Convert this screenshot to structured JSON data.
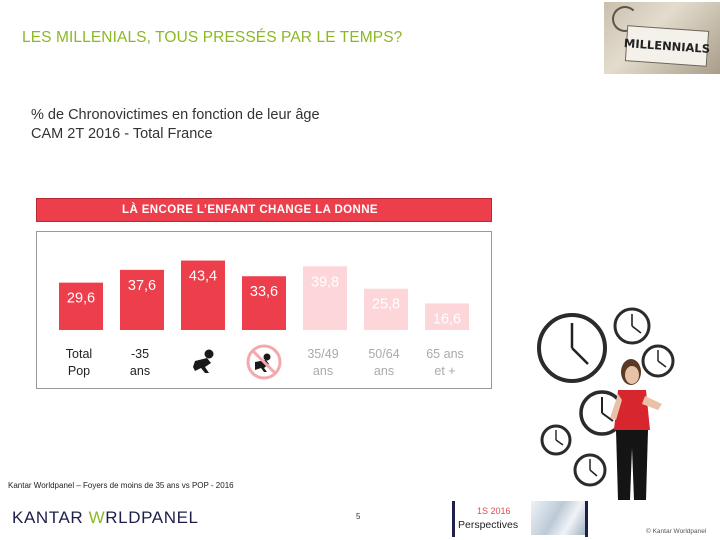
{
  "header": {
    "title": "LES MILLENIALS, TOUS PRESSÉS PAR LE TEMPS?",
    "photo_sign": "MILLENNIALS"
  },
  "subtitle": {
    "line1": "% de Chronovictimes en fonction de leur âge",
    "line2": "CAM 2T 2016 - Total France"
  },
  "banner": "LÀ ENCORE L’ENFANT CHANGE LA DONNE",
  "chart_data": {
    "type": "bar",
    "title": "",
    "categories": [
      [
        "Total",
        "Pop"
      ],
      [
        "-35",
        "ans"
      ],
      [
        "baby-icon"
      ],
      [
        "no-baby-icon"
      ],
      [
        "35/49",
        "ans"
      ],
      [
        "50/64",
        "ans"
      ],
      [
        "65 ans",
        "et +"
      ]
    ],
    "values": [
      29.6,
      37.6,
      43.4,
      33.6,
      39.8,
      25.8,
      16.6
    ],
    "value_labels": [
      "29,6",
      "37,6",
      "43,4",
      "33,6",
      "39,8",
      "25,8",
      "16,6"
    ],
    "bar_colors": [
      "#ec3e4b",
      "#ec3e4b",
      "#ec3e4b",
      "#ec3e4b",
      "#fcd6d9",
      "#fcd6d9",
      "#fcd6d9"
    ],
    "label_colors": [
      "#ffffff",
      "#ffffff",
      "#ffffff",
      "#ffffff",
      "#ffffff",
      "#ffffff",
      "#ffffff"
    ],
    "category_label_colors": [
      "#222222",
      "#222222",
      "#222222",
      "#222222",
      "#aaaaaa",
      "#aaaaaa",
      "#aaaaaa"
    ],
    "ylim": [
      0,
      50
    ],
    "grid": false,
    "legend": "none"
  },
  "footer": {
    "source": "Kantar Worldpanel – Foyers de moins de 35 ans vs POP - 2016",
    "logo_part1": "KANTAR ",
    "logo_part2": "W",
    "logo_part3": "RLDPANEL",
    "page": "5",
    "period": "1S 2016",
    "perspectives": "Perspectives",
    "copyright": "© Kantar Worldpanel"
  },
  "illustration": {
    "clock_icon": "clock-icon",
    "person_icon": "woman-checking-watch"
  }
}
